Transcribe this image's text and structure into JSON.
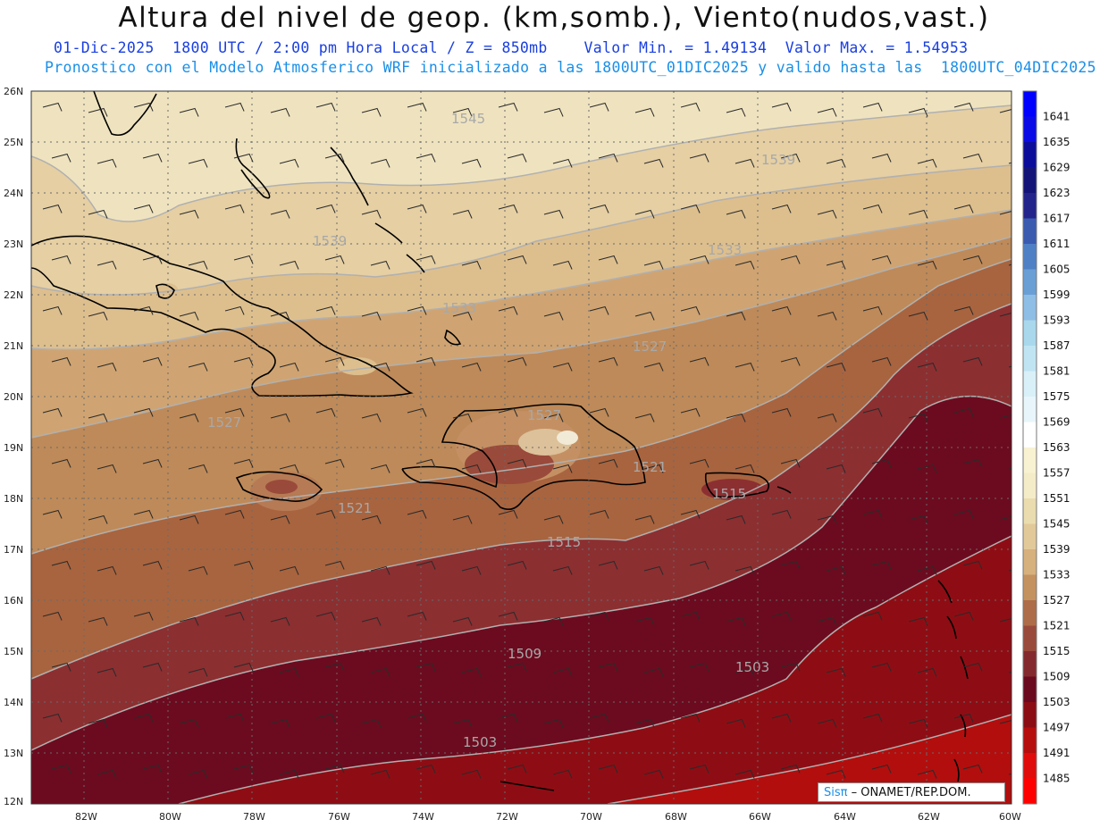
{
  "header": {
    "title": "Altura del nivel de geop. (km,somb.), Viento(nudos,vast.)",
    "line1": "01-Dic-2025  1800 UTC / 2:00 pm Hora Local / Z = 850mb    Valor Min. = 1.49134  Valor Max. = 1.54953",
    "line2": "Pronostico con el Modelo Atmosferico WRF inicializado a las 1800UTC_01DIC2025 y valido hasta las  1800UTC_04DIC2025"
  },
  "map": {
    "lon_labels": [
      "82W",
      "80W",
      "78W",
      "76W",
      "74W",
      "72W",
      "70W",
      "68W",
      "66W",
      "64W",
      "62W",
      "60W"
    ],
    "lat_labels": [
      "26N",
      "25N",
      "24N",
      "23N",
      "22N",
      "21N",
      "20N",
      "19N",
      "18N",
      "17N",
      "16N",
      "15N",
      "14N",
      "13N",
      "12N"
    ],
    "contour_labels": [
      "1545",
      "1539",
      "1539",
      "1533",
      "1533",
      "1527",
      "1527",
      "1527",
      "1521",
      "1521",
      "1515",
      "1515",
      "1509",
      "1503",
      "1503"
    ]
  },
  "colorbar": {
    "levels": [
      "1641",
      "1635",
      "1629",
      "1623",
      "1617",
      "1611",
      "1605",
      "1599",
      "1593",
      "1587",
      "1581",
      "1575",
      "1569",
      "1563",
      "1557",
      "1551",
      "1545",
      "1539",
      "1533",
      "1527",
      "1521",
      "1515",
      "1509",
      "1503",
      "1497",
      "1491",
      "1485"
    ],
    "colors": [
      "#0000ff",
      "#0a0ae6",
      "#0c0c9a",
      "#141478",
      "#23238c",
      "#3a5bb0",
      "#4f80c6",
      "#6a9fd6",
      "#8ebde6",
      "#a9d8ec",
      "#c0e4f2",
      "#d9f0f8",
      "#e8f6fb",
      "#ffffff",
      "#f8f2d2",
      "#f4ecc8",
      "#eadcaf",
      "#e2c99a",
      "#d6b07d",
      "#c4925f",
      "#ae6d48",
      "#9a4a3a",
      "#842a2f",
      "#6b0a1e",
      "#8c0d14",
      "#b60d0d",
      "#e00c0c",
      "#ff0000"
    ]
  },
  "credit": {
    "sis": "Sisπ",
    "rest": "– ONAMET/REP.DOM."
  }
}
